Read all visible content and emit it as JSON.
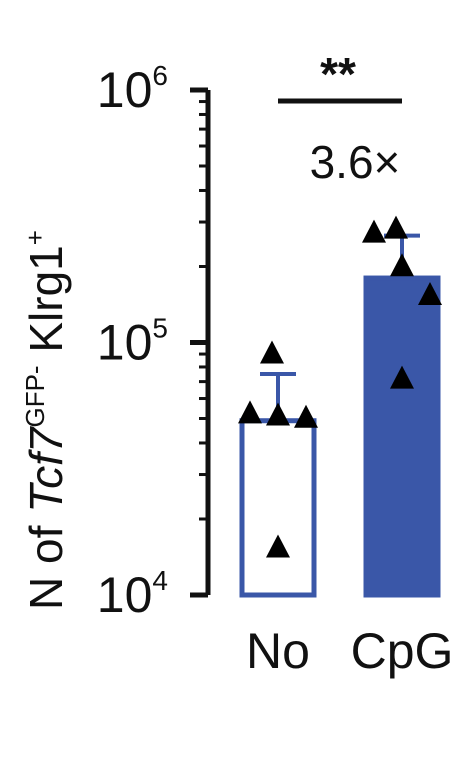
{
  "chart_data": {
    "type": "bar",
    "yscale": "log",
    "ylim": [
      10000,
      1000000
    ],
    "yticks": [
      {
        "base": "10",
        "exp": "4",
        "value": 10000
      },
      {
        "base": "10",
        "exp": "5",
        "value": 100000
      },
      {
        "base": "10",
        "exp": "6",
        "value": 1000000
      }
    ],
    "ylabel": {
      "prefix": "N of ",
      "gene": "Tcf7",
      "gene_sup": "GFP-",
      "marker": " Klrg1",
      "marker_sup": "+"
    },
    "categories": [
      "No",
      "CpG"
    ],
    "series": [
      {
        "category": "No",
        "mean": 49000,
        "err_high": 75000,
        "points": [
          88000,
          51000,
          50000,
          49000,
          15000
        ],
        "fill": "#ffffff",
        "stroke": "#3a57a8"
      },
      {
        "category": "CpG",
        "mean": 180000,
        "err_high": 265000,
        "points": [
          275000,
          265000,
          195000,
          150000,
          70000
        ],
        "fill": "#3a57a8",
        "stroke": "#3a57a8"
      }
    ],
    "annotations": {
      "significance": "**",
      "fold_change": "3.6×"
    },
    "colors": {
      "accent": "#3a57a8",
      "marker": "#000000"
    }
  }
}
